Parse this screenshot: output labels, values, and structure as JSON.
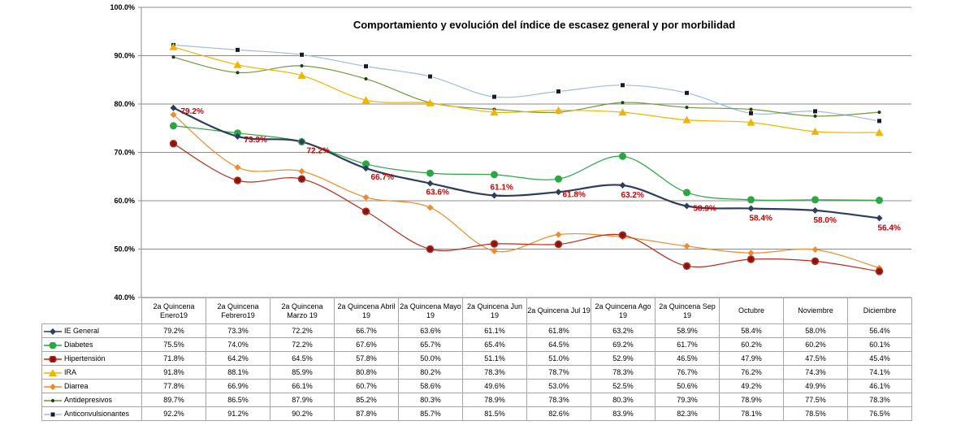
{
  "chart_data": {
    "type": "line",
    "title": "Comportamiento y evolución del índice de escasez general y por morbilidad",
    "categories": [
      "2a Quincena Enero19",
      "2a Quincena Febrero19",
      "2a Quincena Marzo 19",
      "2a Quincena Abril 19",
      "2a Quincena Mayo 19",
      "2a Quincena Jun 19",
      "2a Quincena Jul 19",
      "2a Quincena Ago 19",
      "2a Quincena Sep 19",
      "Octubre",
      "Noviembre",
      "Diciembre"
    ],
    "yticks": [
      "40.0%",
      "50.0%",
      "60.0%",
      "70.0%",
      "80.0%",
      "90.0%",
      "100.0%"
    ],
    "ylim": [
      40,
      100
    ],
    "grid": true,
    "legend": "data-table",
    "series": [
      {
        "name": "IE General",
        "values": [
          79.2,
          73.3,
          72.2,
          66.7,
          63.6,
          61.1,
          61.8,
          63.2,
          58.9,
          58.4,
          58.0,
          56.4
        ],
        "labels": [
          "79.2%",
          "73.3%",
          "72.2%",
          "66.7%",
          "63.6%",
          "61.1%",
          "61.8%",
          "63.2%",
          "58.9%",
          "58.4%",
          "58.0%",
          "56.4%"
        ],
        "color": "#2c3e5c",
        "marker": "diamond"
      },
      {
        "name": "Diabetes",
        "values": [
          75.5,
          74.0,
          72.2,
          67.6,
          65.7,
          65.4,
          64.5,
          69.2,
          61.7,
          60.2,
          60.2,
          60.1
        ],
        "labels": [
          "75.5%",
          "74.0%",
          "72.2%",
          "67.6%",
          "65.7%",
          "65.4%",
          "64.5%",
          "69.2%",
          "61.7%",
          "60.2%",
          "60.2%",
          "60.1%"
        ],
        "color": "#2aa743",
        "marker": "circle"
      },
      {
        "name": "Hipertensión",
        "values": [
          71.8,
          64.2,
          64.5,
          57.8,
          50.0,
          51.1,
          51.0,
          52.9,
          46.5,
          47.9,
          47.5,
          45.4
        ],
        "labels": [
          "71.8%",
          "64.2%",
          "64.5%",
          "57.8%",
          "50.0%",
          "51.1%",
          "51.0%",
          "52.9%",
          "46.5%",
          "47.9%",
          "47.5%",
          "45.4%"
        ],
        "color": "#c0281b",
        "marker": "circle-dark"
      },
      {
        "name": "IRA",
        "values": [
          91.8,
          88.1,
          85.9,
          80.8,
          80.2,
          78.3,
          78.7,
          78.3,
          76.7,
          76.2,
          74.3,
          74.1
        ],
        "labels": [
          "91.8%",
          "88.1%",
          "85.9%",
          "80.8%",
          "80.2%",
          "78.3%",
          "78.7%",
          "78.3%",
          "76.7%",
          "76.2%",
          "74.3%",
          "74.1%"
        ],
        "color": "#f0b400",
        "marker": "triangle"
      },
      {
        "name": "Diarrea",
        "values": [
          77.8,
          66.9,
          66.1,
          60.7,
          58.6,
          49.6,
          53.0,
          52.5,
          50.6,
          49.2,
          49.9,
          46.1
        ],
        "labels": [
          "77.8%",
          "66.9%",
          "66.1%",
          "60.7%",
          "58.6%",
          "49.6%",
          "53.0%",
          "52.5%",
          "50.6%",
          "49.2%",
          "49.9%",
          "46.1%"
        ],
        "color": "#f08a2c",
        "marker": "diamond"
      },
      {
        "name": "Antidepresivos",
        "values": [
          89.7,
          86.5,
          87.9,
          85.2,
          80.3,
          78.9,
          78.3,
          80.3,
          79.3,
          78.9,
          77.5,
          78.3
        ],
        "labels": [
          "89.7%",
          "86.5%",
          "87.9%",
          "85.2%",
          "80.3%",
          "78.9%",
          "78.3%",
          "80.3%",
          "79.3%",
          "78.9%",
          "77.5%",
          "78.3%"
        ],
        "color": "#6f9a3a",
        "marker": "dot"
      },
      {
        "name": "Anticonvulsionantes",
        "values": [
          92.2,
          91.2,
          90.2,
          87.8,
          85.7,
          81.5,
          82.6,
          83.9,
          82.3,
          78.1,
          78.5,
          76.5
        ],
        "labels": [
          "92.2%",
          "91.2%",
          "90.2%",
          "87.8%",
          "85.7%",
          "81.5%",
          "82.6%",
          "83.9%",
          "82.3%",
          "78.1%",
          "78.5%",
          "76.5%"
        ],
        "color": "#9dbbe0",
        "marker": "square"
      }
    ]
  }
}
